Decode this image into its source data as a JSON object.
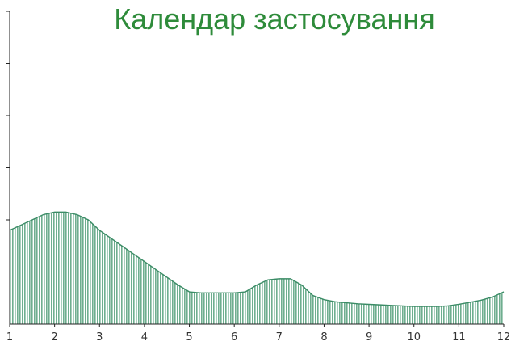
{
  "chart_data": {
    "type": "area",
    "title": "Календар застосування",
    "xlabel": "",
    "ylabel": "",
    "x_ticks": [
      "1",
      "2",
      "3",
      "4",
      "5",
      "6",
      "7",
      "8",
      "9",
      "10",
      "11",
      "12"
    ],
    "xlim": [
      1,
      12
    ],
    "ylim": [
      0,
      6
    ],
    "y_tick_count": 6,
    "grid": false,
    "legend": "none",
    "series": [
      {
        "x": [
          1,
          1.25,
          1.5,
          1.75,
          2,
          2.25,
          2.5,
          2.75,
          3,
          3.25,
          3.5,
          3.75,
          4,
          4.25,
          4.5,
          4.75,
          5,
          5.25,
          5.5,
          5.75,
          6,
          6.25,
          6.5,
          6.75,
          7,
          7.25,
          7.5,
          7.75,
          8,
          8.25,
          8.5,
          8.75,
          9,
          9.25,
          9.5,
          9.75,
          10,
          10.25,
          10.5,
          10.75,
          11,
          11.25,
          11.5,
          11.75,
          12
        ],
        "values": [
          1.8,
          1.9,
          2.0,
          2.1,
          2.15,
          2.15,
          2.1,
          2.0,
          1.8,
          1.65,
          1.5,
          1.35,
          1.2,
          1.05,
          0.9,
          0.75,
          0.62,
          0.6,
          0.6,
          0.6,
          0.6,
          0.62,
          0.75,
          0.85,
          0.87,
          0.87,
          0.75,
          0.55,
          0.47,
          0.43,
          0.41,
          0.39,
          0.38,
          0.37,
          0.36,
          0.35,
          0.34,
          0.34,
          0.34,
          0.35,
          0.38,
          0.42,
          0.46,
          0.52,
          0.62
        ]
      }
    ],
    "colors": {
      "fill": "#8fc9ac",
      "stroke": "#3b8c66",
      "axis": "#222222",
      "title": "#2e8b3a"
    }
  }
}
